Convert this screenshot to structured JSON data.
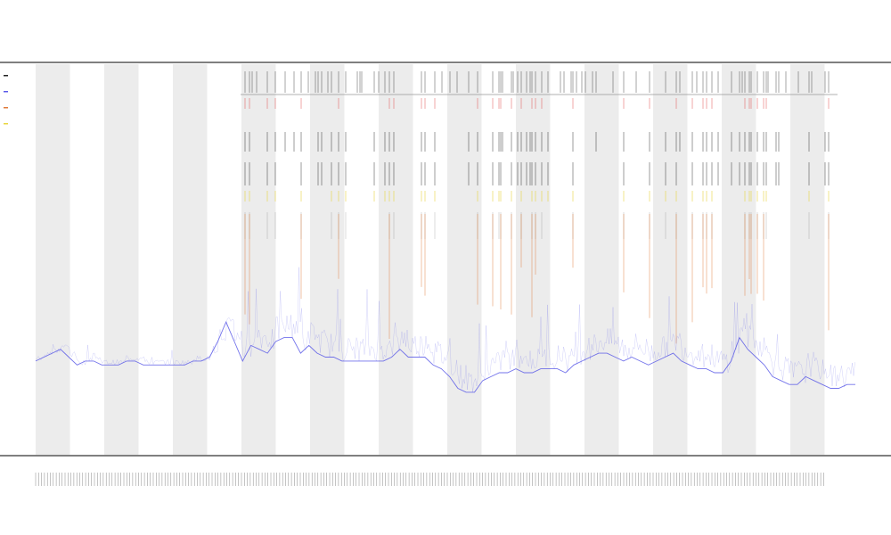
{
  "chart_data": {
    "type": "line",
    "title": "",
    "subtitle_lines": [
      "",
      ""
    ],
    "xlabel": "",
    "ylabel": "",
    "grid": false,
    "legend_position": "top-left",
    "shaded_band_count": 12,
    "colors": {
      "signal": "#5a5ae8",
      "marker_red": "#e05050",
      "marker_black": "#222222",
      "marker_yellow": "#e8d640",
      "marker_orange": "#e07a3a",
      "band": "#ececec",
      "axis": "#555555"
    },
    "series": [
      {
        "values": [
          0.24,
          0.25,
          0.26,
          0.27,
          0.25,
          0.23,
          0.24,
          0.24,
          0.23,
          0.23,
          0.23,
          0.24,
          0.24,
          0.23,
          0.23,
          0.23,
          0.23,
          0.23,
          0.23,
          0.24,
          0.24,
          0.25,
          0.29,
          0.34,
          0.29,
          0.24,
          0.28,
          0.27,
          0.26,
          0.29,
          0.3,
          0.3,
          0.26,
          0.28,
          0.26,
          0.25,
          0.25,
          0.24,
          0.24,
          0.24,
          0.24,
          0.24,
          0.24,
          0.25,
          0.27,
          0.25,
          0.25,
          0.25,
          0.23,
          0.22,
          0.2,
          0.17,
          0.16,
          0.16,
          0.19,
          0.2,
          0.21,
          0.21,
          0.22,
          0.21,
          0.21,
          0.22,
          0.22,
          0.22,
          0.21,
          0.23,
          0.24,
          0.25,
          0.26,
          0.26,
          0.25,
          0.24,
          0.25,
          0.24,
          0.23,
          0.24,
          0.25,
          0.26,
          0.24,
          0.23,
          0.22,
          0.22,
          0.21,
          0.21,
          0.24,
          0.3,
          0.27,
          0.25,
          0.23,
          0.2,
          0.19,
          0.18,
          0.18,
          0.2,
          0.19,
          0.18,
          0.17,
          0.17,
          0.18,
          0.18
        ]
      }
    ],
    "marker_rows": [
      {
        "name": "",
        "color": "#222222"
      },
      {
        "name": "",
        "color": "#e05050"
      }
    ]
  }
}
